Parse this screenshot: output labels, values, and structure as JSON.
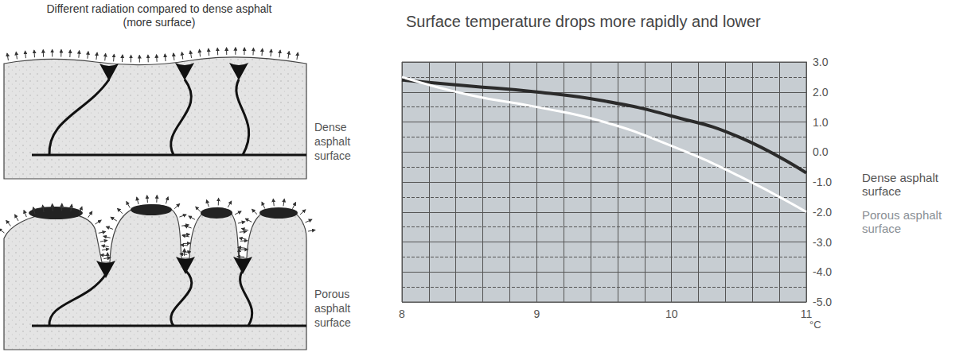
{
  "diagram": {
    "title": "Different radiation compared to dense asphalt (more surface)",
    "labels": [
      "Dense asphalt surface",
      "Porous asphalt surface"
    ]
  },
  "chart_data": {
    "type": "line",
    "title": "Surface temperature drops more rapidly and lower",
    "ylabel": "°C",
    "x": [
      8,
      8.5,
      9,
      9.5,
      10,
      10.5,
      11
    ],
    "series": [
      {
        "name": "Dense asphalt surface",
        "color": "#2b2b2b",
        "values": [
          2.4,
          2.2,
          2.0,
          1.7,
          1.2,
          0.5,
          -0.7
        ]
      },
      {
        "name": "Porous asphalt surface",
        "color": "#ffffff",
        "values": [
          2.5,
          1.9,
          1.5,
          1.0,
          0.2,
          -0.8,
          -2.0
        ]
      }
    ],
    "xlim": [
      8,
      11
    ],
    "xticks": [
      8,
      9,
      10,
      11
    ],
    "ylim": [
      -5,
      3
    ],
    "yticks": [
      {
        "value": -5,
        "label": "-5.0"
      },
      {
        "value": -4,
        "label": "-4.0"
      },
      {
        "value": -3,
        "label": "-3.0"
      },
      {
        "value": -2,
        "label": "-2.0"
      },
      {
        "value": -1,
        "label": "-1.0"
      },
      {
        "value": 0,
        "label": "0.0"
      },
      {
        "value": 1,
        "label": "1.0"
      },
      {
        "value": 2,
        "label": "2.0"
      },
      {
        "value": 3,
        "label": "3.0"
      }
    ],
    "grid": true
  }
}
